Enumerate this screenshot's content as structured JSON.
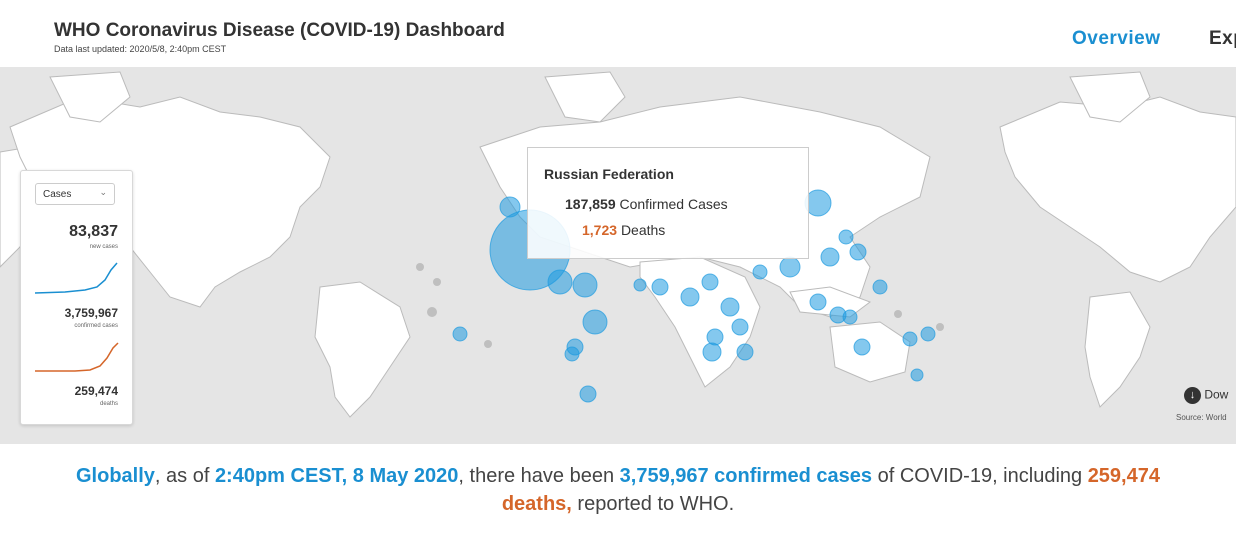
{
  "header": {
    "title": "WHO Coronavirus Disease (COVID-19) Dashboard",
    "updated": "Data last updated: 2020/5/8, 2:40pm CEST",
    "nav": [
      "Overview",
      "Exp"
    ]
  },
  "colors": {
    "accent_blue": "#1a8fd1",
    "accent_orange": "#d5662a",
    "map_bg": "#e5e5e5",
    "land": "#ffffff",
    "bubble": "#1f9be0"
  },
  "panel": {
    "metric_select": "Cases",
    "new_cases": "83,837",
    "new_cases_label": "new cases",
    "confirmed": "3,759,967",
    "confirmed_label": "confirmed cases",
    "deaths": "259,474",
    "deaths_label": "deaths"
  },
  "tooltip": {
    "country": "Russian Federation",
    "confirmed_value": "187,859",
    "confirmed_label": "Confirmed Cases",
    "deaths_value": "1,723",
    "deaths_label": "Deaths"
  },
  "map_footer": {
    "download": "Dow",
    "source": "Source: World"
  },
  "summary": {
    "p1": "Globally",
    "p2": ", as of ",
    "p3": "2:40pm CEST, 8 May 2020",
    "p4": ", there have been ",
    "p5": "3,759,967 confirmed cases",
    "p6": " of COVID-19, including ",
    "p7": "259,474",
    "p8": "deaths,",
    "p9": " reported to WHO."
  }
}
